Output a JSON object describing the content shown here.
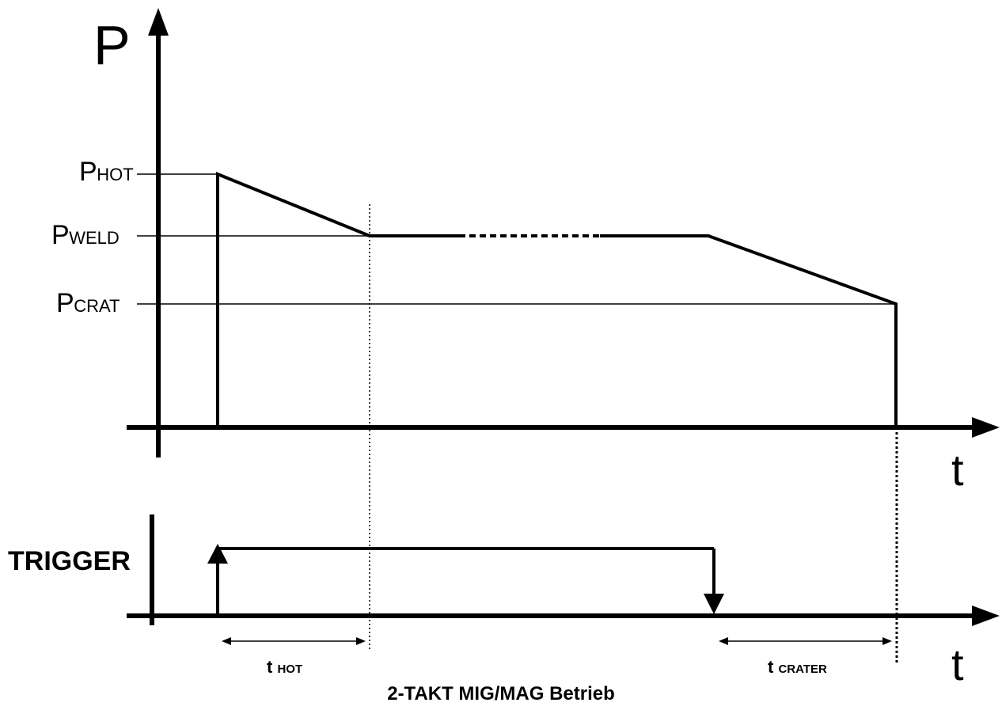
{
  "diagram": {
    "title": "2-TAKT MIG/MAG Betrieb",
    "power_axis": {
      "label": "P",
      "time_label": "t"
    },
    "levels": {
      "hot": {
        "main": "P",
        "sub": "HOT"
      },
      "weld": {
        "main": "P",
        "sub": "WELD"
      },
      "crater": {
        "main": "P",
        "sub": "CRAT"
      }
    },
    "trigger_axis": {
      "label": "TRIGGER",
      "time_label": "t"
    },
    "durations": {
      "hot": {
        "main": "t",
        "sub": "HOT"
      },
      "crater": {
        "main": "t",
        "sub": "CRATER"
      }
    },
    "colors": {
      "ink": "#000000",
      "background": "#ffffff"
    }
  }
}
